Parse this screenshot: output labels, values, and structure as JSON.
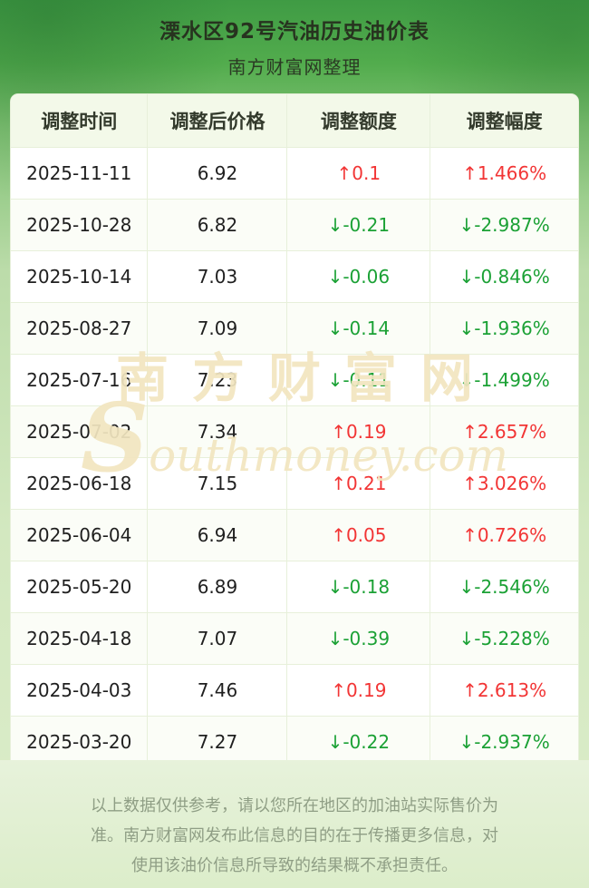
{
  "header": {
    "title": "溧水区92号汽油历史油价表",
    "subtitle": "南方财富网整理"
  },
  "table": {
    "columns": [
      "调整时间",
      "调整后价格",
      "调整额度",
      "调整幅度"
    ],
    "rows": [
      {
        "date": "2025-11-11",
        "price": "6.92",
        "change": "↑0.1",
        "change_pct": "↑1.466%",
        "dir": "up"
      },
      {
        "date": "2025-10-28",
        "price": "6.82",
        "change": "↓-0.21",
        "change_pct": "↓-2.987%",
        "dir": "down"
      },
      {
        "date": "2025-10-14",
        "price": "7.03",
        "change": "↓-0.06",
        "change_pct": "↓-0.846%",
        "dir": "down"
      },
      {
        "date": "2025-08-27",
        "price": "7.09",
        "change": "↓-0.14",
        "change_pct": "↓-1.936%",
        "dir": "down"
      },
      {
        "date": "2025-07-16",
        "price": "7.23",
        "change": "↓-0.11",
        "change_pct": "↓-1.499%",
        "dir": "down"
      },
      {
        "date": "2025-07-02",
        "price": "7.34",
        "change": "↑0.19",
        "change_pct": "↑2.657%",
        "dir": "up"
      },
      {
        "date": "2025-06-18",
        "price": "7.15",
        "change": "↑0.21",
        "change_pct": "↑3.026%",
        "dir": "up"
      },
      {
        "date": "2025-06-04",
        "price": "6.94",
        "change": "↑0.05",
        "change_pct": "↑0.726%",
        "dir": "up"
      },
      {
        "date": "2025-05-20",
        "price": "6.89",
        "change": "↓-0.18",
        "change_pct": "↓-2.546%",
        "dir": "down"
      },
      {
        "date": "2025-04-18",
        "price": "7.07",
        "change": "↓-0.39",
        "change_pct": "↓-5.228%",
        "dir": "down"
      },
      {
        "date": "2025-04-03",
        "price": "7.46",
        "change": "↑0.19",
        "change_pct": "↑2.613%",
        "dir": "up"
      },
      {
        "date": "2025-03-20",
        "price": "7.27",
        "change": "↓-0.22",
        "change_pct": "↓-2.937%",
        "dir": "down"
      }
    ]
  },
  "watermark": {
    "cn": "南方财富网",
    "en": "Southmoney.com"
  },
  "footer": {
    "disclaimer": "以上数据仅供参考，请以您所在地区的加油站实际售价为准。南方财富网发布此信息的目的在于传播更多信息，对使用该油价信息所导致的结果概不承担责任。"
  },
  "colors": {
    "up_red": "#f23535",
    "down_green": "#1ba135",
    "header_row_bg": "#f3f9e9",
    "page_green": "#4aa44c",
    "watermark_cream": "#f2e6c0"
  }
}
